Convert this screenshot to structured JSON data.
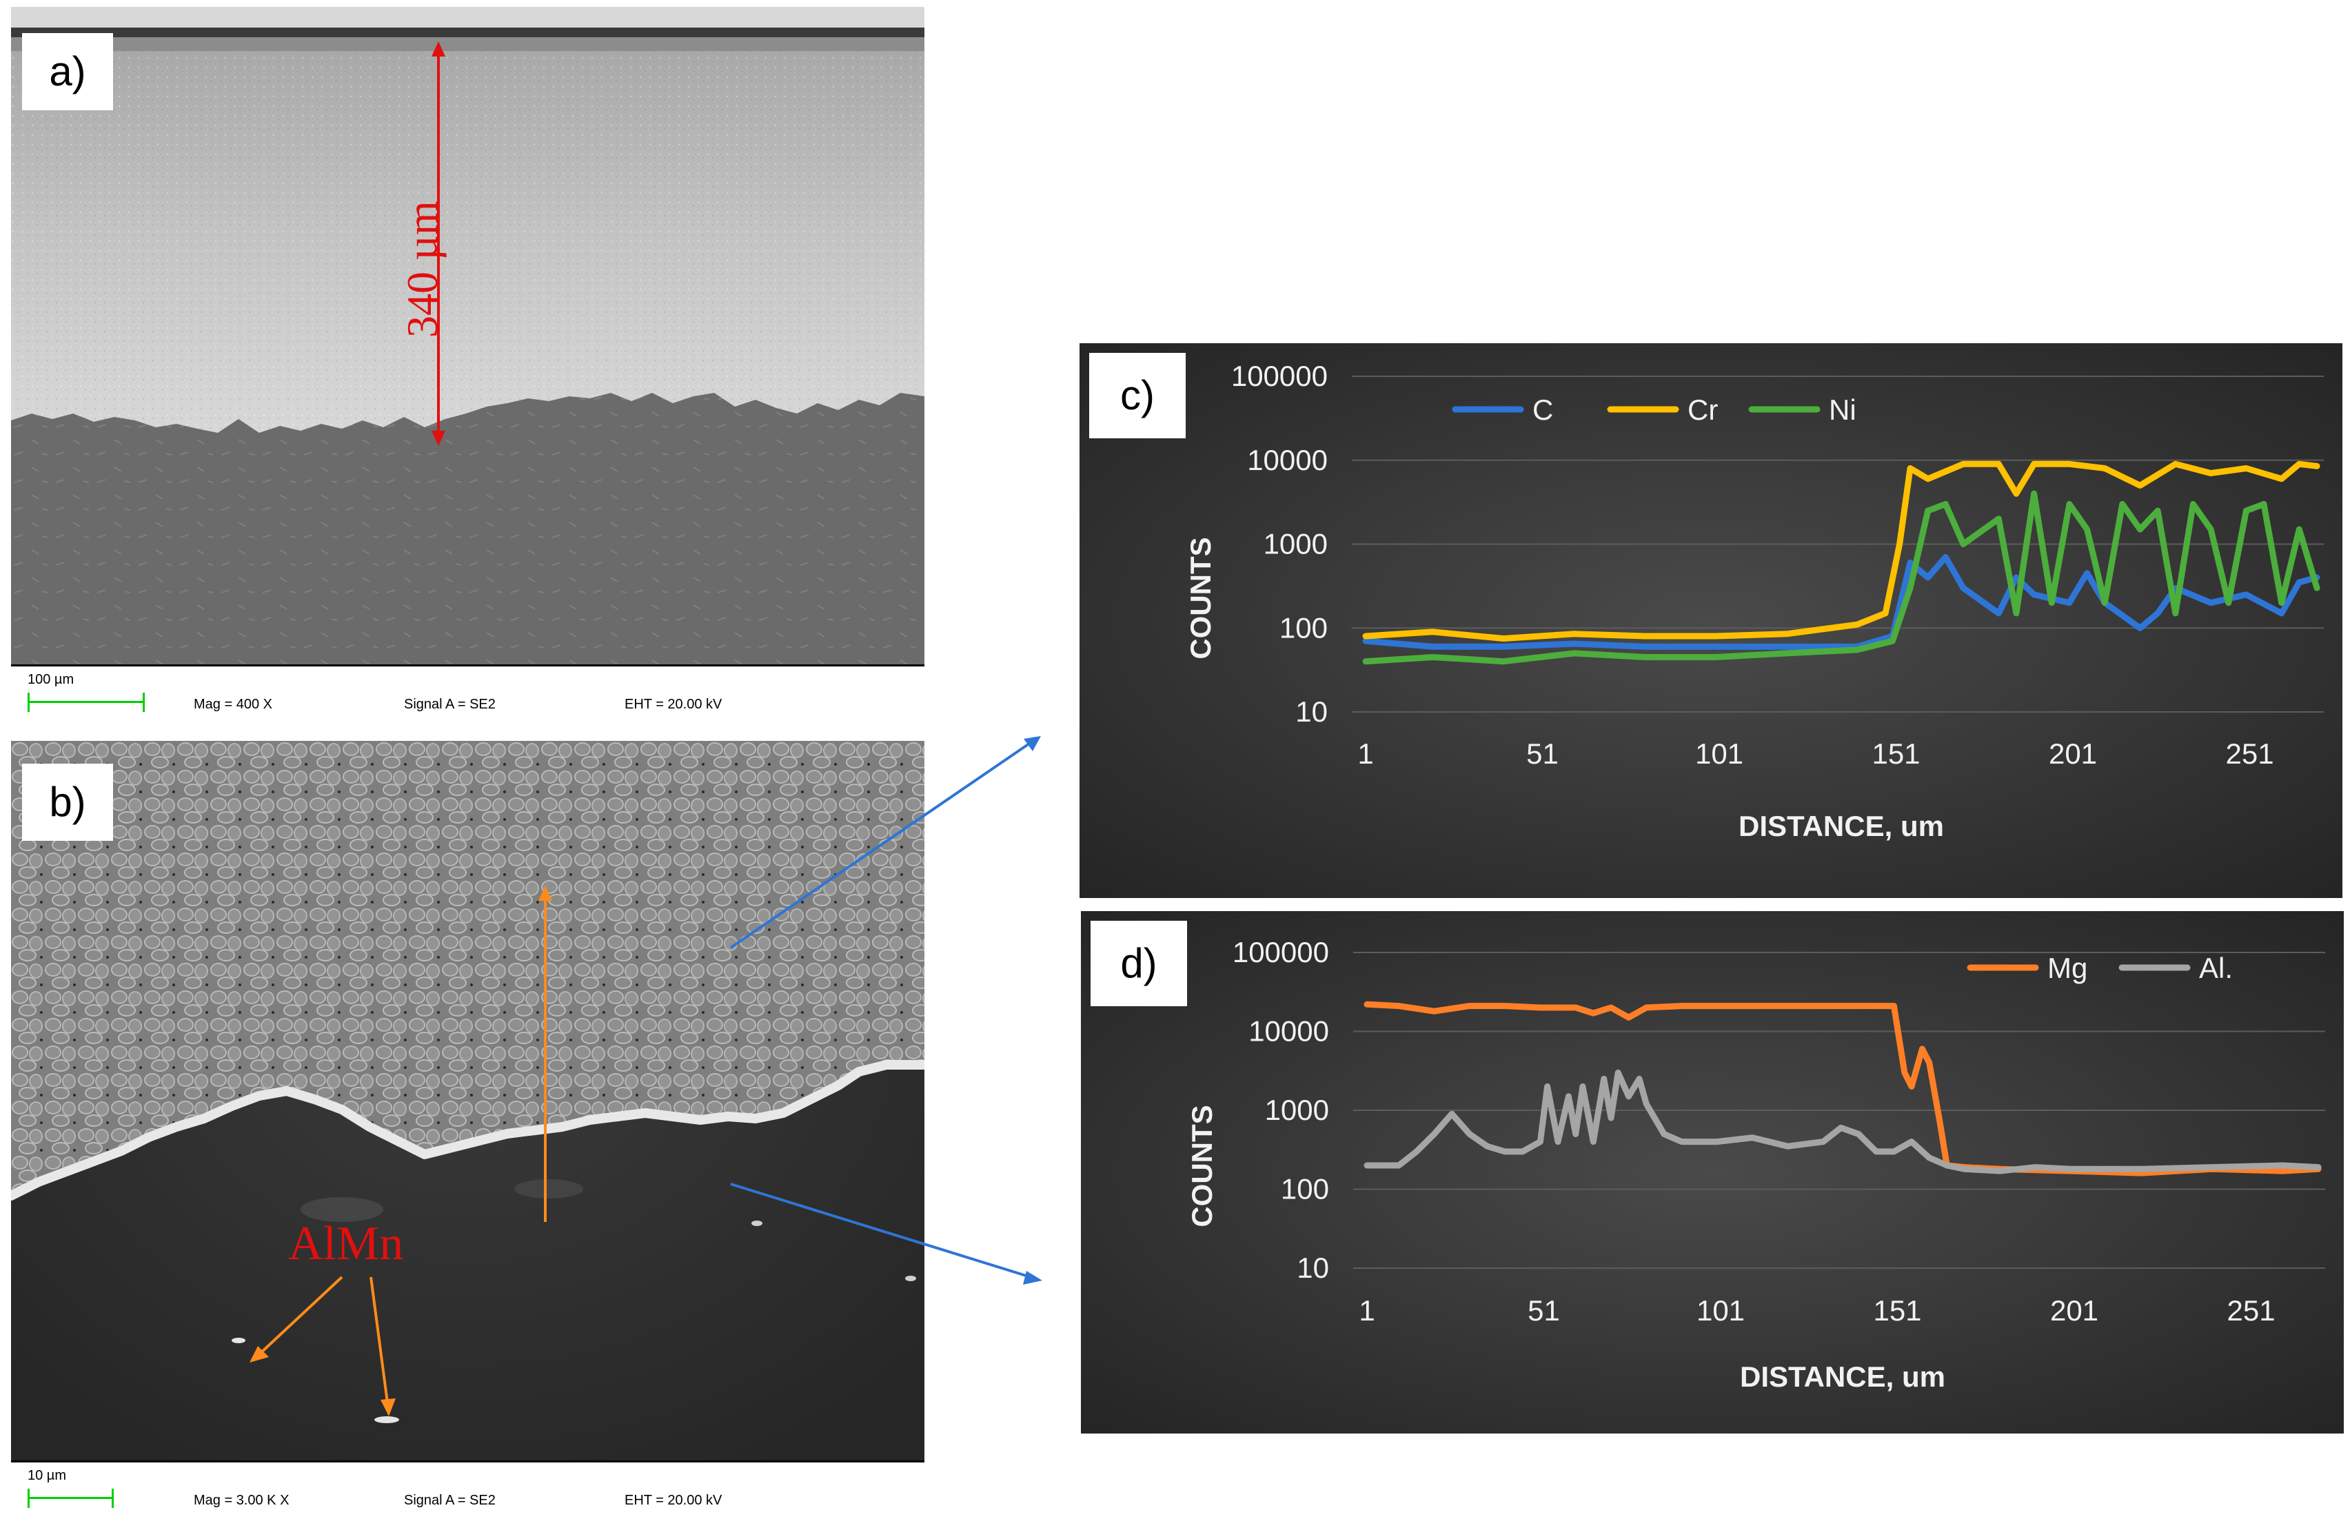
{
  "panel_a": {
    "label": "a)",
    "measure_text": "340 µm",
    "databar": {
      "scale": "100 µm",
      "mag": "Mag =   400 X",
      "signal": "Signal A = SE2",
      "eht": "EHT = 20.00 kV"
    }
  },
  "panel_b": {
    "label": "b)",
    "phase_label": "AlMn",
    "databar": {
      "scale": "10 µm",
      "mag": "Mag =  3.00 K X",
      "signal": "Signal A = SE2",
      "eht": "EHT = 20.00 kV"
    }
  },
  "colors": {
    "C": "#2e75d6",
    "Cr": "#ffc000",
    "Ni": "#4cae3c",
    "Mg": "#ff7f27",
    "Al": "#a5a5a5",
    "arrow_blue": "#2e75d6",
    "arrow_orange": "#ff8c1a",
    "measure_red": "#e01010"
  },
  "chart_data": [
    {
      "panel": "c)",
      "type": "line",
      "xlabel": "DISTANCE, um",
      "ylabel": "COUNTS",
      "y_scale": "log",
      "ylim": [
        10,
        100000
      ],
      "y_ticks": [
        "10",
        "100",
        "1000",
        "10000",
        "100000"
      ],
      "xlim": [
        1,
        270
      ],
      "x_ticks": [
        "1",
        "51",
        "101",
        "151",
        "201",
        "251"
      ],
      "legend_position": "top-left",
      "grid": true,
      "series": [
        {
          "name": "C",
          "color": "#2e75d6",
          "x": [
            1,
            20,
            40,
            60,
            80,
            100,
            120,
            140,
            150,
            155,
            160,
            165,
            170,
            180,
            185,
            190,
            200,
            205,
            210,
            220,
            225,
            230,
            240,
            250,
            260,
            265,
            270
          ],
          "y": [
            70,
            60,
            60,
            65,
            60,
            60,
            60,
            60,
            80,
            600,
            400,
            700,
            300,
            150,
            400,
            250,
            200,
            450,
            200,
            100,
            150,
            300,
            200,
            250,
            150,
            350,
            400
          ]
        },
        {
          "name": "Cr",
          "color": "#ffc000",
          "x": [
            1,
            20,
            40,
            60,
            80,
            100,
            120,
            140,
            148,
            152,
            155,
            160,
            170,
            180,
            185,
            190,
            200,
            210,
            220,
            230,
            240,
            250,
            260,
            265,
            270
          ],
          "y": [
            80,
            90,
            75,
            85,
            80,
            80,
            85,
            110,
            150,
            1000,
            8000,
            6000,
            9000,
            9000,
            4000,
            9000,
            9000,
            8000,
            5000,
            9000,
            7000,
            8000,
            6000,
            9000,
            8500
          ]
        },
        {
          "name": "Ni",
          "color": "#4cae3c",
          "x": [
            1,
            20,
            40,
            60,
            80,
            100,
            120,
            140,
            150,
            155,
            160,
            165,
            170,
            180,
            185,
            190,
            195,
            200,
            205,
            210,
            215,
            220,
            225,
            230,
            235,
            240,
            245,
            250,
            255,
            260,
            265,
            270
          ],
          "y": [
            40,
            45,
            40,
            50,
            45,
            45,
            50,
            55,
            70,
            300,
            2500,
            3000,
            1000,
            2000,
            150,
            4000,
            200,
            3000,
            1500,
            200,
            3000,
            1500,
            2500,
            150,
            3000,
            1500,
            200,
            2500,
            3000,
            200,
            1500,
            300
          ]
        }
      ]
    },
    {
      "panel": "d)",
      "type": "line",
      "xlabel": "DISTANCE, um",
      "ylabel": "COUNTS",
      "y_scale": "log",
      "ylim": [
        10,
        100000
      ],
      "y_ticks": [
        "10",
        "100",
        "1000",
        "10000",
        "100000"
      ],
      "xlim": [
        1,
        270
      ],
      "x_ticks": [
        "1",
        "51",
        "101",
        "151",
        "201",
        "251"
      ],
      "legend_position": "top-right",
      "grid": true,
      "series": [
        {
          "name": "Mg",
          "color": "#ff7f27",
          "x": [
            1,
            10,
            20,
            30,
            40,
            50,
            60,
            65,
            70,
            75,
            80,
            90,
            100,
            120,
            140,
            150,
            153,
            155,
            158,
            160,
            163,
            165,
            170,
            180,
            200,
            220,
            240,
            260,
            270
          ],
          "y": [
            22000,
            21000,
            18000,
            21000,
            21000,
            20000,
            20000,
            17000,
            20000,
            15000,
            20000,
            21000,
            21000,
            21000,
            21000,
            21000,
            3000,
            2000,
            6000,
            4000,
            700,
            200,
            190,
            180,
            170,
            160,
            180,
            170,
            180
          ]
        },
        {
          "name": "Al.",
          "color": "#a5a5a5",
          "x": [
            1,
            10,
            15,
            20,
            25,
            30,
            35,
            40,
            45,
            50,
            52,
            55,
            58,
            60,
            62,
            65,
            68,
            70,
            72,
            75,
            78,
            80,
            85,
            90,
            100,
            110,
            120,
            130,
            135,
            140,
            145,
            150,
            155,
            160,
            165,
            170,
            180,
            190,
            200,
            220,
            240,
            260,
            270
          ],
          "y": [
            200,
            200,
            300,
            500,
            900,
            500,
            350,
            300,
            300,
            400,
            2000,
            400,
            1500,
            500,
            2000,
            400,
            2500,
            800,
            3000,
            1500,
            2500,
            1200,
            500,
            400,
            400,
            450,
            350,
            400,
            600,
            500,
            300,
            300,
            400,
            250,
            200,
            180,
            170,
            190,
            180,
            180,
            190,
            200,
            190
          ]
        }
      ]
    }
  ]
}
